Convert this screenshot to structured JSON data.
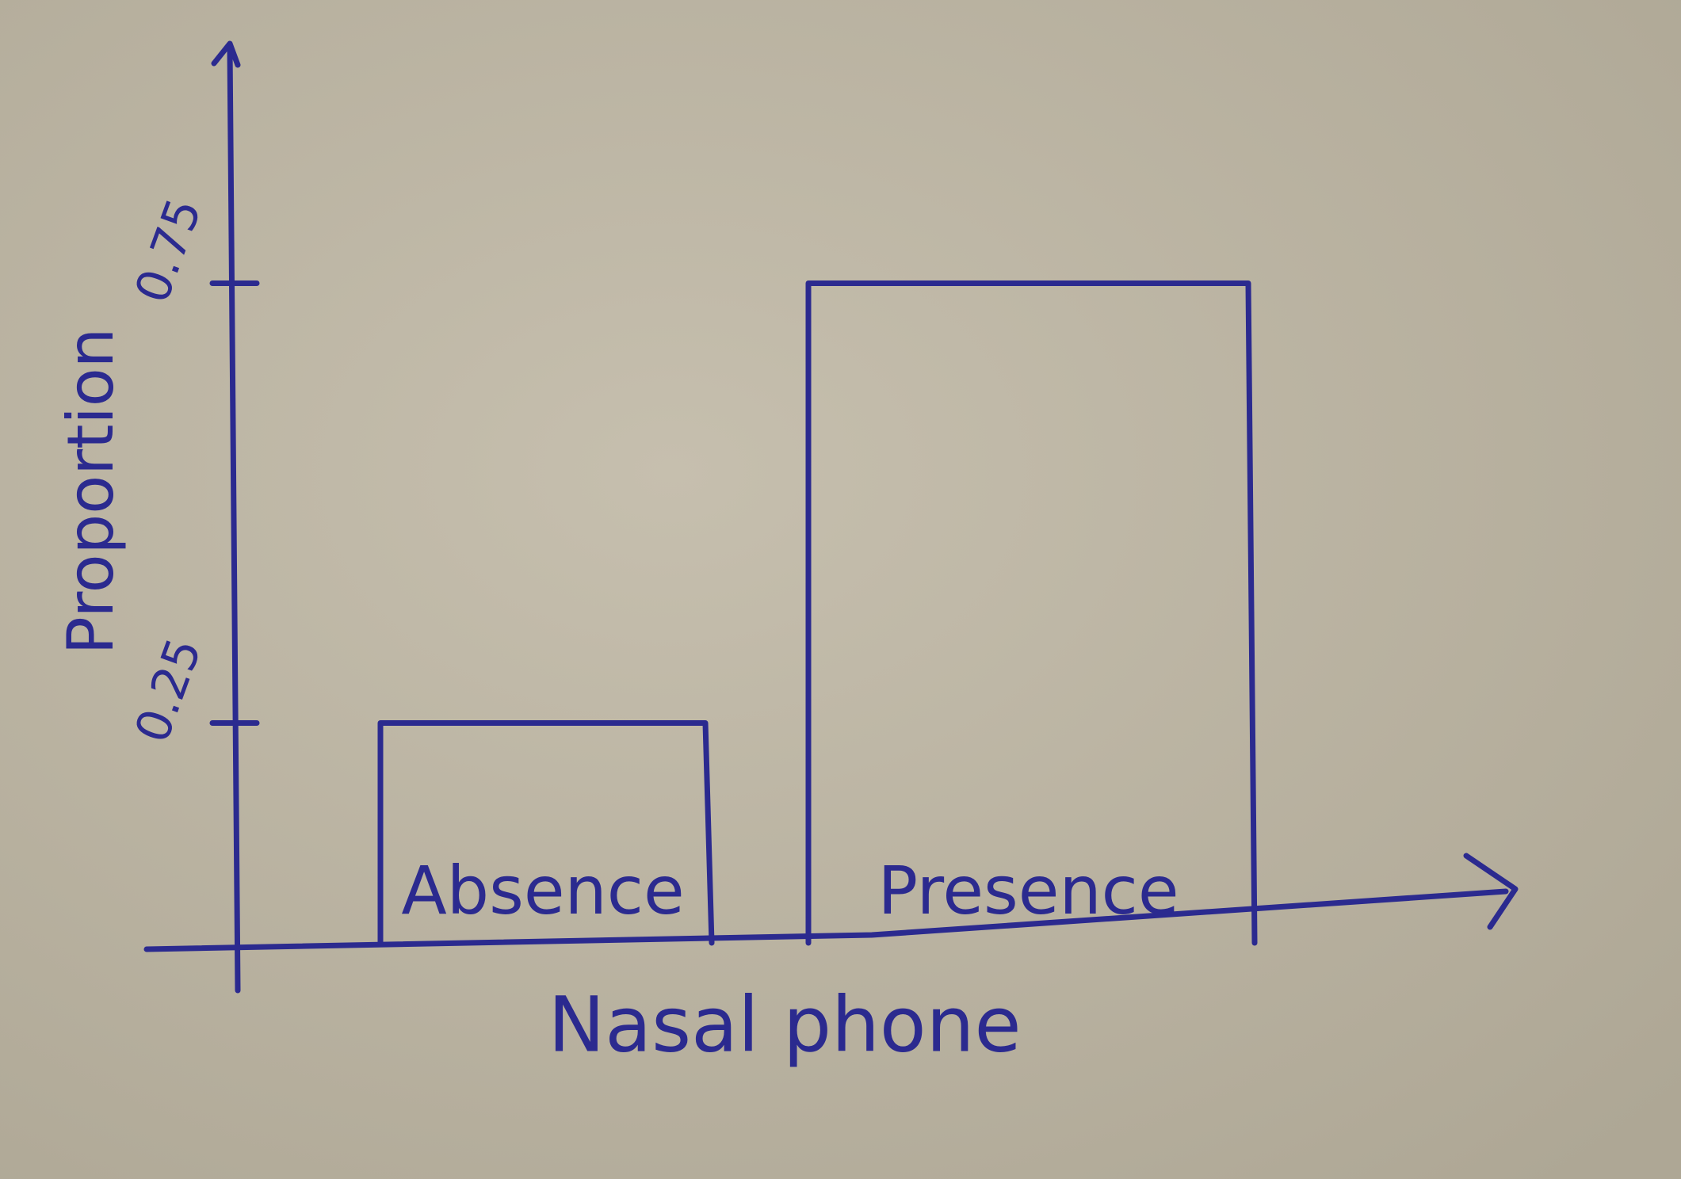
{
  "chart_data": {
    "type": "bar",
    "x_label": "Nasal phone",
    "y_label": "Proportion",
    "categories": [
      "Absence",
      "Presence"
    ],
    "values": [
      0.25,
      0.75
    ],
    "color": "#2b2a8f",
    "ylim": [
      0,
      1
    ],
    "yticks": [
      0.25,
      0.75
    ],
    "grid": false
  }
}
